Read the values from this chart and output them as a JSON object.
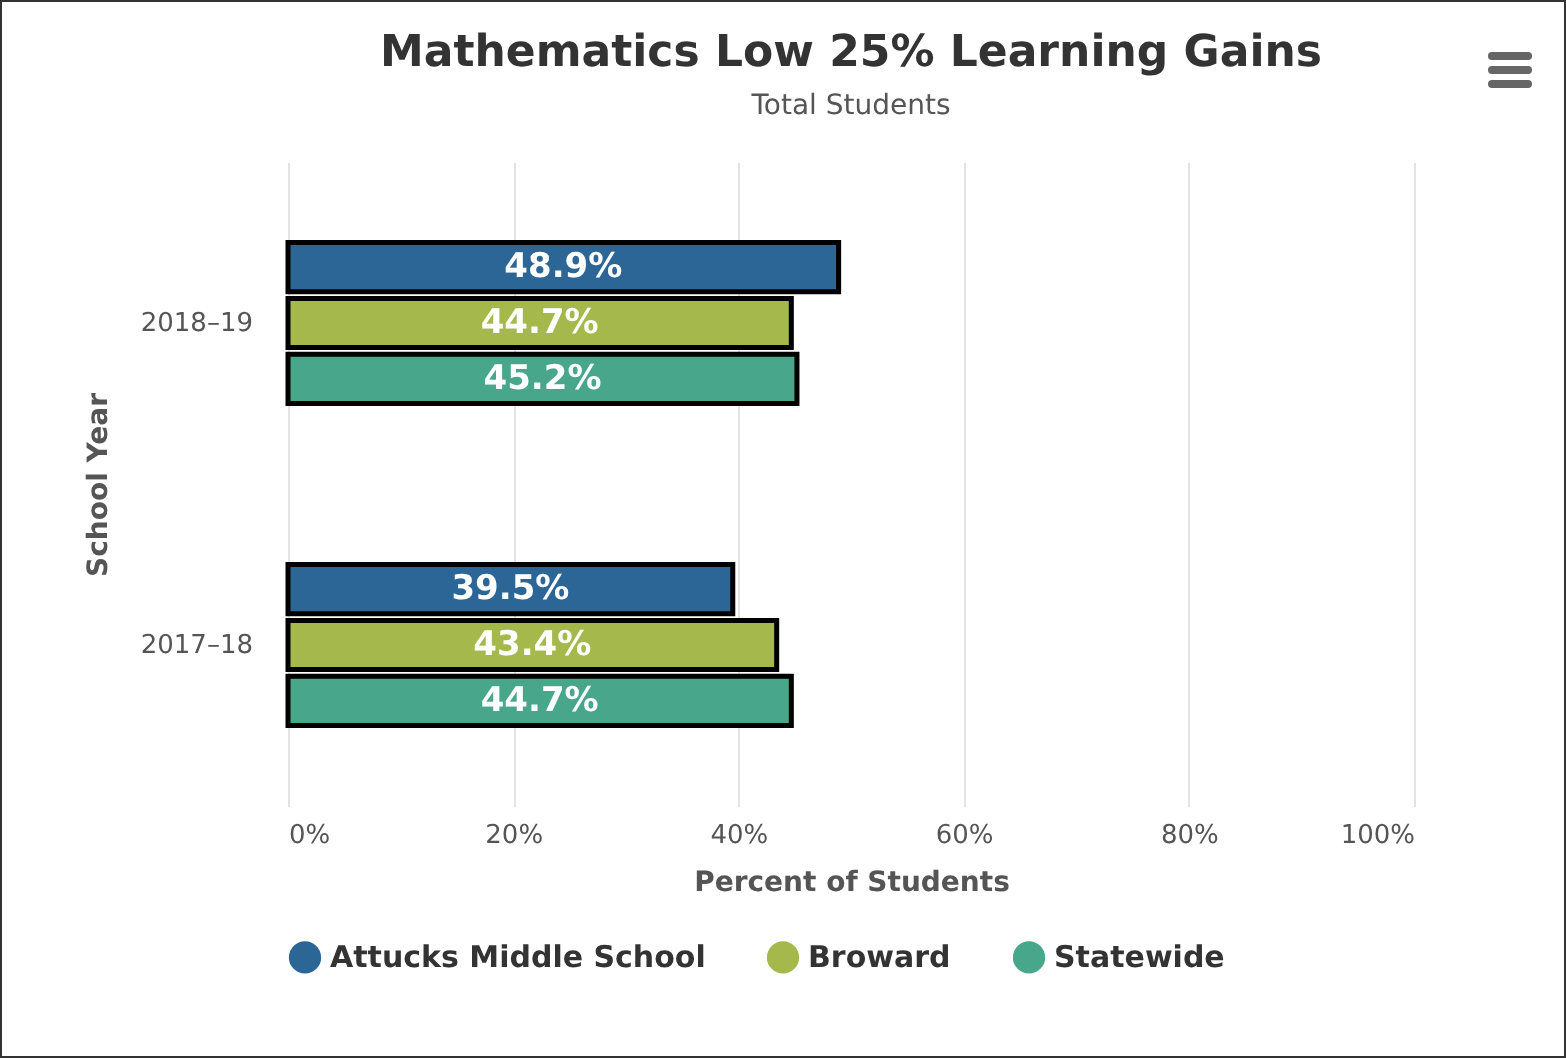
{
  "chart_data": {
    "type": "bar",
    "orientation": "horizontal",
    "title": "Mathematics Low 25% Learning Gains",
    "subtitle": "Total Students",
    "xlabel": "Percent of Students",
    "ylabel": "School Year",
    "categories": [
      "2018–19",
      "2017–18"
    ],
    "series": [
      {
        "name": "Attucks Middle School",
        "color": "#2b6696",
        "values": [
          48.9,
          39.5
        ],
        "value_labels": [
          "48.9%",
          "39.5%"
        ]
      },
      {
        "name": "Broward",
        "color": "#a5b84b",
        "values": [
          44.7,
          43.4
        ],
        "value_labels": [
          "44.7%",
          "43.4%"
        ]
      },
      {
        "name": "Statewide",
        "color": "#48a68b",
        "values": [
          45.2,
          44.7
        ],
        "value_labels": [
          "45.2%",
          "44.7%"
        ]
      }
    ],
    "xlim": [
      0,
      100
    ],
    "xticks": [
      {
        "value": 0,
        "label": "0%"
      },
      {
        "value": 20,
        "label": "20%"
      },
      {
        "value": 40,
        "label": "40%"
      },
      {
        "value": 60,
        "label": "60%"
      },
      {
        "value": 80,
        "label": "80%"
      },
      {
        "value": 100,
        "label": "100%"
      }
    ],
    "grid": "x",
    "legend": "bottom"
  }
}
